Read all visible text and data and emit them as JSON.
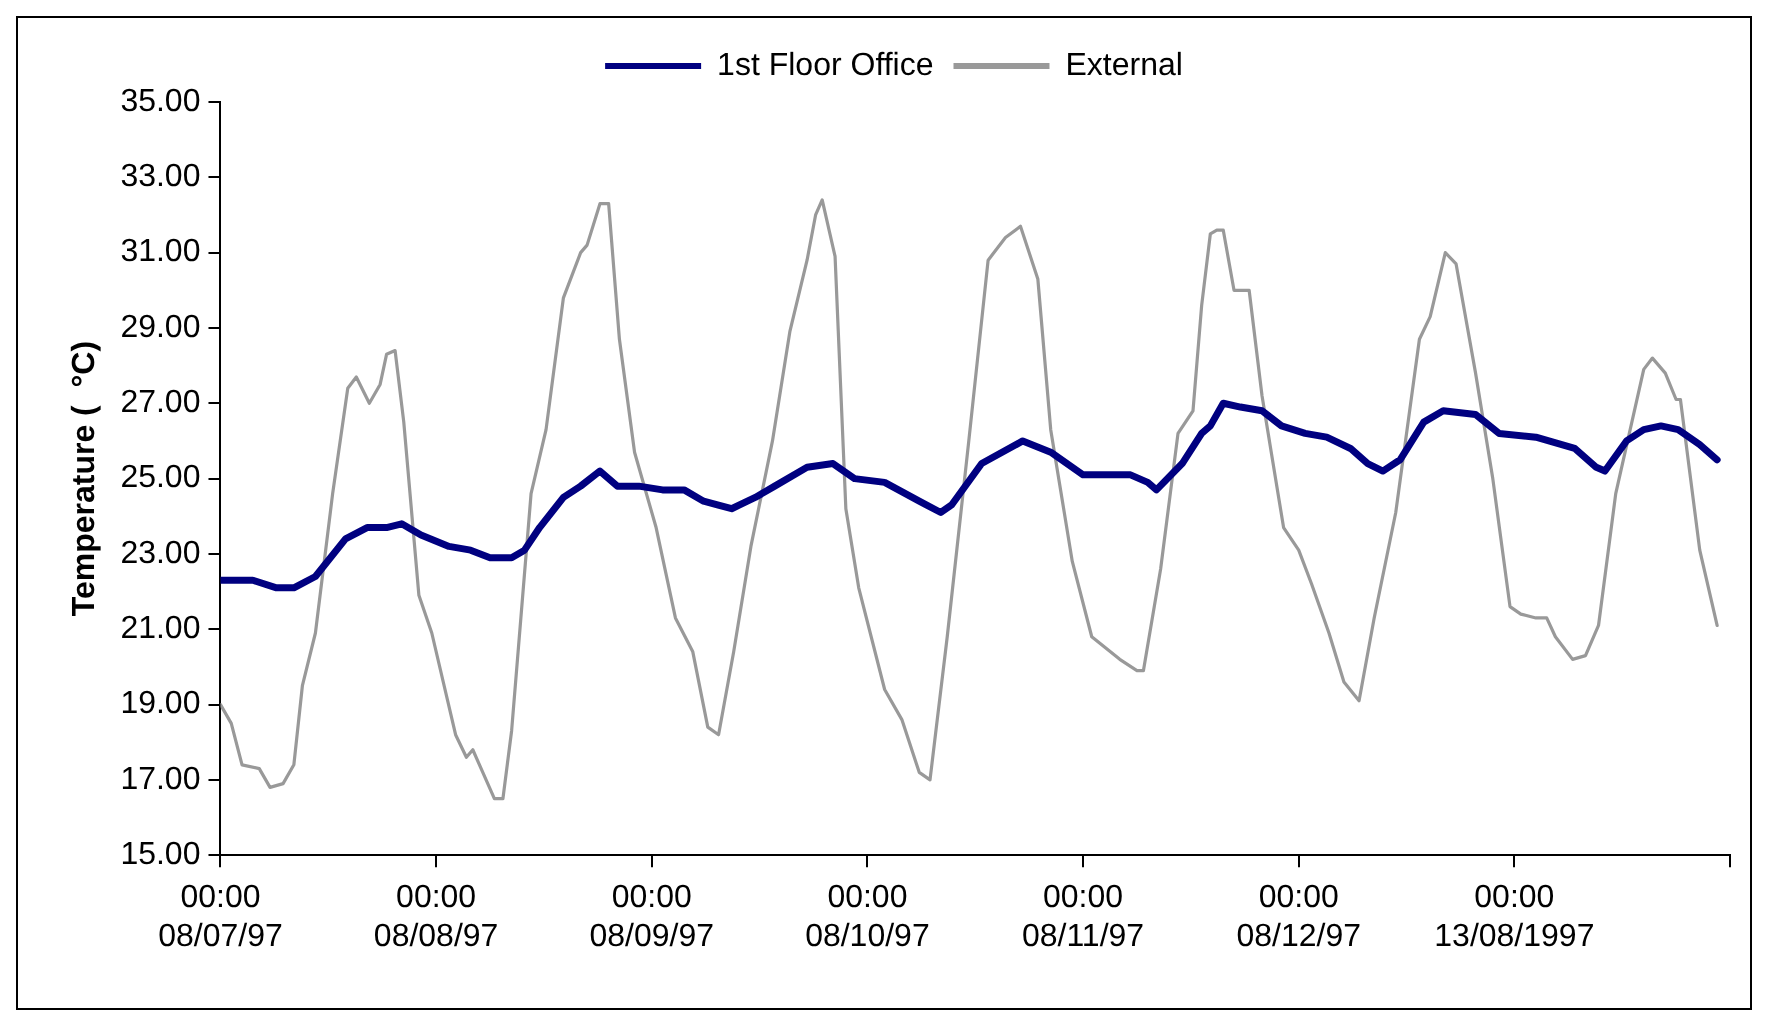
{
  "chart_data": {
    "type": "line",
    "ylabel": "Temperature (  °C)",
    "xlim": [
      "1997-08-07T00:00",
      "1997-08-14T00:00"
    ],
    "ylim": [
      15,
      35
    ],
    "yticks": [
      {
        "value": 15,
        "label": "15.00"
      },
      {
        "value": 17,
        "label": "17.00"
      },
      {
        "value": 19,
        "label": "19.00"
      },
      {
        "value": 21,
        "label": "21.00"
      },
      {
        "value": 23,
        "label": "23.00"
      },
      {
        "value": 25,
        "label": "25.00"
      },
      {
        "value": 27,
        "label": "27.00"
      },
      {
        "value": 29,
        "label": "29.00"
      },
      {
        "value": 31,
        "label": "31.00"
      },
      {
        "value": 33,
        "label": "33.00"
      },
      {
        "value": 35,
        "label": "35.00"
      }
    ],
    "xticks": [
      {
        "value": "1997-08-07T00:00",
        "label": "00:00\n08/07/97"
      },
      {
        "value": "1997-08-08T00:00",
        "label": "00:00\n08/08/97"
      },
      {
        "value": "1997-08-09T00:00",
        "label": "00:00\n08/09/97"
      },
      {
        "value": "1997-08-10T00:00",
        "label": "00:00\n08/10/97"
      },
      {
        "value": "1997-08-11T00:00",
        "label": "00:00\n08/11/97"
      },
      {
        "value": "1997-08-12T00:00",
        "label": "00:00\n08/12/97"
      },
      {
        "value": "1997-08-13T00:00",
        "label": "00:00\n13/08/1997"
      },
      {
        "value": "1997-08-14T00:00",
        "label": null
      }
    ],
    "grid": false,
    "legend": "top",
    "marker": "none",
    "line_style": "solid",
    "series": [
      {
        "name": "1st Floor Office",
        "color": "#000080",
        "x": [
          "1997-08-07T00:00",
          "1997-08-07T03:36",
          "1997-08-07T06:14",
          "1997-08-07T08:10",
          "1997-08-07T10:34",
          "1997-08-07T13:55",
          "1997-08-07T16:19",
          "1997-08-07T18:29",
          "1997-08-07T20:10",
          "1997-08-07T22:19",
          "1997-08-08T01:26",
          "1997-08-08T03:50",
          "1997-08-08T06:00",
          "1997-08-08T08:24",
          "1997-08-08T09:50",
          "1997-08-08T11:31",
          "1997-08-08T14:10",
          "1997-08-08T16:05",
          "1997-08-08T18:14",
          "1997-08-08T20:10",
          "1997-08-08T22:34",
          "1997-08-09T01:12",
          "1997-08-09T03:36",
          "1997-08-09T05:46",
          "1997-08-09T08:53",
          "1997-08-09T11:31",
          "1997-08-09T13:41",
          "1997-08-09T17:17",
          "1997-08-09T20:10",
          "1997-08-09T22:34",
          "1997-08-10T01:55",
          "1997-08-10T05:46",
          "1997-08-10T08:10",
          "1997-08-10T09:22",
          "1997-08-10T12:43",
          "1997-08-10T17:17",
          "1997-08-10T20:24",
          "1997-08-11T00:00",
          "1997-08-11T05:17",
          "1997-08-11T07:12",
          "1997-08-11T08:10",
          "1997-08-11T11:02",
          "1997-08-11T13:12",
          "1997-08-11T14:10",
          "1997-08-11T15:36",
          "1997-08-11T17:31",
          "1997-08-11T19:55",
          "1997-08-11T22:05",
          "1997-08-12T00:43",
          "1997-08-12T03:07",
          "1997-08-12T05:46",
          "1997-08-12T07:41",
          "1997-08-12T09:22",
          "1997-08-12T11:17",
          "1997-08-12T13:55",
          "1997-08-12T16:05",
          "1997-08-12T19:41",
          "1997-08-12T22:19",
          "1997-08-13T02:24",
          "1997-08-13T06:43",
          "1997-08-13T09:07",
          "1997-08-13T10:05",
          "1997-08-13T12:29",
          "1997-08-13T14:24",
          "1997-08-13T16:19",
          "1997-08-13T18:14",
          "1997-08-13T20:38",
          "1997-08-13T22:34"
        ],
        "values": [
          22.3,
          22.3,
          22.1,
          22.1,
          22.4,
          23.4,
          23.7,
          23.7,
          23.8,
          23.5,
          23.2,
          23.1,
          22.9,
          22.9,
          23.1,
          23.7,
          24.5,
          24.8,
          25.2,
          24.8,
          24.8,
          24.7,
          24.7,
          24.4,
          24.2,
          24.5,
          24.8,
          25.3,
          25.4,
          25.0,
          24.9,
          24.4,
          24.1,
          24.3,
          25.4,
          26.0,
          25.7,
          25.1,
          25.1,
          24.9,
          24.7,
          25.4,
          26.2,
          26.4,
          27.0,
          26.9,
          26.8,
          26.4,
          26.2,
          26.1,
          25.8,
          25.4,
          25.2,
          25.5,
          26.5,
          26.8,
          26.7,
          26.2,
          26.1,
          25.8,
          25.3,
          25.2,
          26.0,
          26.3,
          26.4,
          26.3,
          25.9,
          25.5
        ]
      },
      {
        "name": "External",
        "color": "#999999",
        "x": [
          "1997-08-07T00:00",
          "1997-08-07T01:12",
          "1997-08-07T02:24",
          "1997-08-07T04:19",
          "1997-08-07T05:31",
          "1997-08-07T06:58",
          "1997-08-07T08:10",
          "1997-08-07T09:07",
          "1997-08-07T10:34",
          "1997-08-07T12:29",
          "1997-08-07T14:10",
          "1997-08-07T15:07",
          "1997-08-07T16:34",
          "1997-08-07T17:46",
          "1997-08-07T18:29",
          "1997-08-07T19:26",
          "1997-08-07T20:24",
          "1997-08-07T22:05",
          "1997-08-07T23:31",
          "1997-08-08T02:10",
          "1997-08-08T03:22",
          "1997-08-08T04:05",
          "1997-08-08T06:29",
          "1997-08-08T07:26",
          "1997-08-08T08:24",
          "1997-08-08T10:34",
          "1997-08-08T12:14",
          "1997-08-08T14:10",
          "1997-08-08T16:05",
          "1997-08-08T16:48",
          "1997-08-08T18:14",
          "1997-08-08T19:12",
          "1997-08-08T20:24",
          "1997-08-08T22:05",
          "1997-08-09T00:29",
          "1997-08-09T02:38",
          "1997-08-09T04:34",
          "1997-08-09T06:14",
          "1997-08-09T07:26",
          "1997-08-09T09:07",
          "1997-08-09T11:02",
          "1997-08-09T13:26",
          "1997-08-09T15:22",
          "1997-08-09T17:17",
          "1997-08-09T18:14",
          "1997-08-09T18:58",
          "1997-08-09T20:24",
          "1997-08-09T21:36",
          "1997-08-09T23:02",
          "1997-08-10T01:55",
          "1997-08-10T03:50",
          "1997-08-10T05:46",
          "1997-08-10T06:58",
          "1997-08-10T08:53",
          "1997-08-10T11:17",
          "1997-08-10T13:26",
          "1997-08-10T15:22",
          "1997-08-10T17:02",
          "1997-08-10T18:58",
          "1997-08-10T20:24",
          "1997-08-10T22:48",
          "1997-08-11T00:58",
          "1997-08-11T04:05",
          "1997-08-11T06:00",
          "1997-08-11T06:43",
          "1997-08-11T08:38",
          "1997-08-11T10:34",
          "1997-08-11T12:14",
          "1997-08-11T13:12",
          "1997-08-11T14:10",
          "1997-08-11T14:53",
          "1997-08-11T15:36",
          "1997-08-11T16:48",
          "1997-08-11T18:29",
          "1997-08-11T19:55",
          "1997-08-11T22:19",
          "1997-08-12T00:00",
          "1997-08-12T01:26",
          "1997-08-12T03:22",
          "1997-08-12T05:02",
          "1997-08-12T06:43",
          "1997-08-12T08:24",
          "1997-08-12T10:48",
          "1997-08-12T13:26",
          "1997-08-12T14:38",
          "1997-08-12T16:19",
          "1997-08-12T17:31",
          "1997-08-12T19:41",
          "1997-08-12T21:36",
          "1997-08-12T23:31",
          "1997-08-13T00:43",
          "1997-08-13T02:24",
          "1997-08-13T03:36",
          "1997-08-13T04:34",
          "1997-08-13T06:29",
          "1997-08-13T07:55",
          "1997-08-13T09:22",
          "1997-08-13T11:17",
          "1997-08-13T14:24",
          "1997-08-13T15:22",
          "1997-08-13T16:48",
          "1997-08-13T18:00",
          "1997-08-13T18:29",
          "1997-08-13T20:38",
          "1997-08-13T22:34"
        ],
        "values": [
          19.0,
          18.5,
          17.4,
          17.3,
          16.8,
          16.9,
          17.4,
          19.5,
          20.9,
          24.6,
          27.4,
          27.7,
          27.0,
          27.5,
          28.3,
          28.4,
          26.5,
          21.9,
          20.9,
          18.2,
          17.6,
          17.8,
          16.5,
          16.5,
          18.3,
          24.6,
          26.3,
          29.8,
          31.0,
          31.2,
          32.3,
          32.3,
          28.7,
          25.7,
          23.7,
          21.3,
          20.4,
          18.4,
          18.2,
          20.4,
          23.2,
          26.0,
          28.9,
          30.8,
          32.0,
          32.4,
          30.9,
          24.2,
          22.1,
          19.4,
          18.6,
          17.2,
          17.0,
          20.8,
          26.0,
          30.8,
          31.4,
          31.7,
          30.3,
          26.3,
          22.8,
          20.8,
          20.2,
          19.9,
          19.9,
          22.6,
          26.2,
          26.8,
          29.6,
          31.5,
          31.6,
          31.6,
          30.0,
          30.0,
          27.2,
          23.7,
          23.1,
          22.2,
          20.9,
          19.6,
          19.1,
          21.3,
          24.1,
          28.7,
          29.3,
          31.0,
          30.7,
          27.8,
          25.0,
          21.6,
          21.4,
          21.3,
          21.3,
          20.8,
          20.2,
          20.3,
          21.1,
          24.6,
          27.9,
          28.2,
          27.8,
          27.1,
          27.1,
          23.1,
          21.1
        ]
      }
    ]
  }
}
